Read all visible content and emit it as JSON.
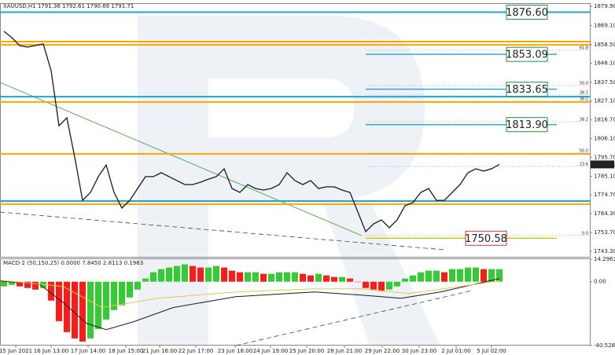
{
  "chart_data": [
    {
      "type": "price",
      "title": "XAUUSD,H1  1791.36 1792.61 1790.69 1791.71",
      "xlim": [
        -0.5,
        74.5
      ],
      "ylim": [
        1740.2,
        1881.2
      ],
      "yticks": [
        {
          "value": 1879.9,
          "label": "1879.90"
        },
        {
          "value": 1869.1,
          "label": "1869.10"
        },
        {
          "value": 1858.5,
          "label": "1858.50"
        },
        {
          "value": 1848.1,
          "label": "1848.10"
        },
        {
          "value": 1837.5,
          "label": "1837.50"
        },
        {
          "value": 1827.1,
          "label": "1827.10"
        },
        {
          "value": 1816.7,
          "label": "1816.70"
        },
        {
          "value": 1806.1,
          "label": "1806.10"
        },
        {
          "value": 1795.7,
          "label": "1795.70"
        },
        {
          "value": 1785.1,
          "label": "1785.10"
        },
        {
          "value": 1774.7,
          "label": "1774.70"
        },
        {
          "value": 1764.3,
          "label": "1764.30"
        },
        {
          "value": 1753.7,
          "label": "1753.70"
        },
        {
          "value": 1743.3,
          "label": "1743.30"
        }
      ],
      "xticks": [
        {
          "value": 1.5,
          "label": "15 Jun 2021"
        },
        {
          "value": 6,
          "label": "16 Jun 13:00"
        },
        {
          "value": 10.7,
          "label": "17 Jun 14:00"
        },
        {
          "value": 15.5,
          "label": "18 Jun 15:00"
        },
        {
          "value": 19.8,
          "label": "21 Jun 16:00"
        },
        {
          "value": 24.4,
          "label": "22 Jun 17:00"
        },
        {
          "value": 29.4,
          "label": "23 Jun 18:00"
        },
        {
          "value": 33.9,
          "label": "24 Jun 19:00"
        },
        {
          "value": 38.5,
          "label": "25 Jun 20:00"
        },
        {
          "value": 43.3,
          "label": "28 Jun 21:00"
        },
        {
          "value": 48.1,
          "label": "29 Jun 22:00"
        },
        {
          "value": 52.8,
          "label": "30 Jun 23:00"
        },
        {
          "value": 57.5,
          "label": "2 Jul 01:00"
        },
        {
          "value": 62,
          "label": "5 Jul 02:00"
        }
      ],
      "x": [
        0,
        1,
        2,
        3,
        4,
        5,
        6,
        7,
        8,
        9,
        10,
        11,
        12,
        13,
        14,
        15,
        16,
        17,
        18,
        19,
        20,
        21,
        22,
        23,
        24,
        25,
        26,
        27,
        28,
        29,
        30,
        31,
        32,
        33,
        34,
        35,
        36,
        37,
        38,
        39,
        40,
        41,
        42,
        43,
        44,
        45,
        46,
        47,
        48,
        49,
        50,
        51,
        52,
        53,
        54,
        55,
        56,
        57,
        58,
        59,
        60,
        61,
        62,
        63
      ],
      "series": [
        {
          "color": "#1a1a1a",
          "values": [
            1865.9,
            1862.4,
            1858.0,
            1857.1,
            1858.0,
            1858.9,
            1844.0,
            1813.3,
            1817.7,
            1795.8,
            1771.7,
            1776.1,
            1784.9,
            1791.4,
            1776.1,
            1767.4,
            1771.7,
            1778.3,
            1784.9,
            1784.9,
            1787.1,
            1784.9,
            1782.7,
            1780.5,
            1780.5,
            1781.8,
            1783.5,
            1784.9,
            1789.3,
            1778.3,
            1776.1,
            1780.5,
            1778.3,
            1777.4,
            1778.3,
            1780.5,
            1787.1,
            1782.7,
            1780.5,
            1782.7,
            1778.3,
            1779.2,
            1779.2,
            1777.4,
            1776.1,
            1765.2,
            1754.2,
            1758.6,
            1760.8,
            1756.4,
            1760.8,
            1768.7,
            1770.4,
            1776.1,
            1778.3,
            1771.7,
            1771.7,
            1776.1,
            1780.5,
            1787.1,
            1789.3,
            1788.0,
            1789.3,
            1791.7
          ]
        }
      ],
      "levels": [
        {
          "price": 1876.6,
          "color": "#1ca6d6"
        },
        {
          "price": 1860.2,
          "color": "#ffa500"
        },
        {
          "price": 1858.4,
          "color": "#ffa500"
        },
        {
          "price": 1829.5,
          "color": "#1ca6d6"
        },
        {
          "price": 1826.5,
          "color": "#ffa500"
        },
        {
          "price": 1797.6,
          "color": "#ffa500"
        },
        {
          "price": 1771.3,
          "color": "#1ca6d6"
        },
        {
          "price": 1769.6,
          "color": "#ffa500"
        }
      ],
      "price_labels": [
        {
          "value": 1876.6,
          "label": "1876.60",
          "color": "#1a9a3a"
        },
        {
          "value": 1853.09,
          "label": "1853.09",
          "color": "#1a9a3a"
        },
        {
          "value": 1833.65,
          "label": "1833.65",
          "color": "#1a9a3a"
        },
        {
          "value": 1813.9,
          "label": "1813.90",
          "color": "#1a9a3a"
        },
        {
          "value": 1750.58,
          "label": "1750.58",
          "color": "#e03030"
        }
      ],
      "fib_levels": [
        {
          "ratio": "61.8",
          "price": 1855.4
        },
        {
          "ratio": "50.0",
          "price": 1835.7
        },
        {
          "ratio": "38.2",
          "price": 1830.4
        },
        {
          "ratio": "38.2",
          "price": 1826.9
        },
        {
          "ratio": "38.2",
          "price": 1815.5
        },
        {
          "ratio": "50.0",
          "price": 1798.0
        },
        {
          "ratio": "23.6",
          "price": 1790.6
        },
        {
          "ratio": "0.0",
          "price": 1752.1
        }
      ],
      "last_price": 1791.71
    },
    {
      "type": "macd",
      "title": "MACD-2 (50,150,25) 0.0000 7.8450 2.8113 0.1963",
      "xlim": [
        -0.5,
        74.5
      ],
      "ylim": [
        -40.5285,
        14.2963
      ],
      "yticks": [
        14.2963,
        {
          "value": 0,
          "label": "0.00"
        },
        -40.5285
      ],
      "x": [
        0,
        1,
        2,
        3,
        4,
        5,
        6,
        7,
        8,
        9,
        10,
        11,
        12,
        13,
        14,
        15,
        16,
        17,
        18,
        19,
        20,
        21,
        22,
        23,
        24,
        25,
        26,
        27,
        28,
        29,
        30,
        31,
        32,
        33,
        34,
        35,
        36,
        37,
        38,
        39,
        40,
        41,
        42,
        43,
        44,
        45,
        46,
        47,
        48,
        49,
        50,
        51,
        52,
        53,
        54,
        55,
        56,
        57,
        58,
        59,
        60,
        61,
        62,
        63
      ],
      "histogram": {
        "rising_color": "#33cc33",
        "falling_color": "#ff1a1a",
        "values": [
          -3,
          -2,
          -3,
          -4,
          -5,
          -4,
          -12,
          -25,
          -32,
          -36,
          -38,
          -36,
          -30,
          -24,
          -18,
          -15,
          -10,
          -5,
          2,
          6,
          8,
          9,
          10,
          11,
          10,
          9,
          9,
          10,
          9,
          7,
          6,
          6,
          6,
          5,
          5,
          6,
          6,
          6,
          5,
          4,
          5,
          4,
          3,
          3,
          2,
          0,
          -4,
          -5,
          -6,
          -5,
          -3,
          2,
          4,
          6,
          7,
          7,
          6,
          8,
          8,
          9,
          9,
          8,
          8,
          8
        ]
      },
      "series": [
        {
          "color": "#1a1a1a",
          "x": [
            -0.5,
            4.5,
            7.5,
            10.5,
            13,
            16.5,
            21.5,
            29.5,
            39.5,
            45.5,
            50.5,
            55.5,
            63
          ],
          "values": [
            0.5,
            -1.5,
            -13,
            -26.4,
            -30.4,
            -25.4,
            -16.4,
            -9.5,
            -6.5,
            -8.5,
            -10.5,
            -6.5,
            2
          ]
        },
        {
          "color": "#e6c84a",
          "x": [
            -0.5,
            7.5,
            12.5,
            19.5,
            29.5,
            39.5,
            45.5,
            51.5,
            63
          ],
          "values": [
            1,
            -3,
            -16.4,
            -10.5,
            -6.5,
            -4.5,
            -4.5,
            -7.5,
            0.5
          ]
        }
      ]
    }
  ]
}
